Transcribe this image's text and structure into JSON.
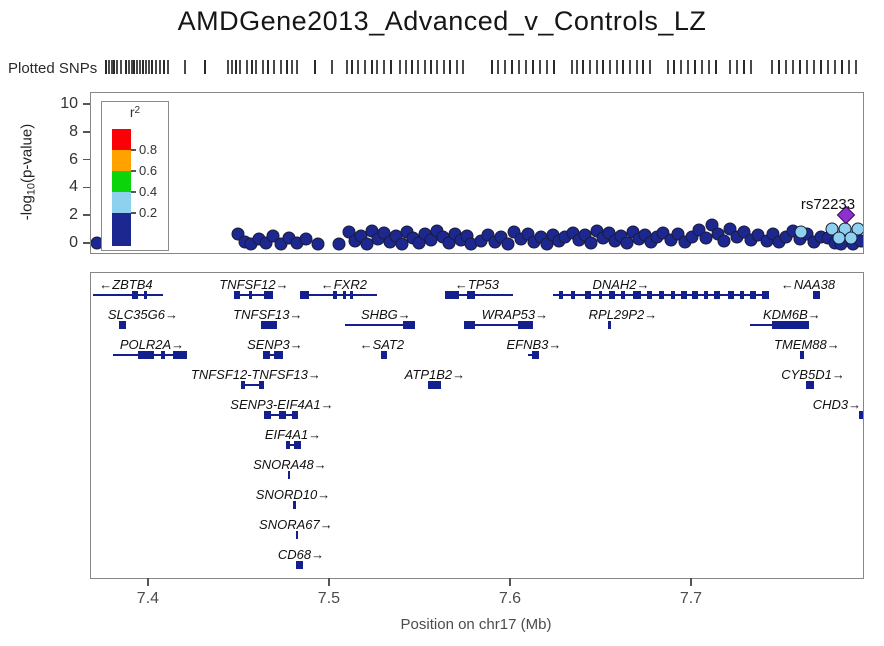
{
  "title": "AMDGene2013_Advanced_v_Controls_LZ",
  "rug_label": "Plotted SNPs",
  "y_axis_label": {
    "prefix": "-log",
    "sub": "10",
    "suffix": "(p-value)"
  },
  "chart_data": {
    "type": "scatter",
    "title": "AMDGene2013_Advanced_v_Controls_LZ",
    "xlabel": "Position on chr17 (Mb)",
    "ylabel": "-log10(p-value)",
    "xlim": [
      7.368,
      7.7945
    ],
    "xticks": [
      7.4,
      7.5,
      7.6,
      7.7
    ],
    "ylim": [
      0,
      10
    ],
    "yticks": [
      0,
      2,
      4,
      6,
      8,
      10
    ],
    "grid": false,
    "legend": {
      "title_base": "r",
      "title_sup": "2",
      "position": "top-left",
      "ticks": [
        "0.8",
        "0.6",
        "0.4",
        "0.2"
      ],
      "colors": [
        "#fb0006",
        "#ffa200",
        "#0bd40b",
        "#8ed1ee",
        "#1c278f"
      ]
    },
    "lead_snp": {
      "name": "rs72233",
      "x": 7.7851,
      "y": 2.1,
      "shape": "diamond",
      "color": "#8d30cc"
    },
    "series": [
      {
        "name": "r2 <= 0.2",
        "color": "#1c278f",
        "shape": "circle",
        "points": [
          [
            7.3712,
            0.05
          ],
          [
            7.4492,
            0.72
          ],
          [
            7.453,
            0.14
          ],
          [
            7.4564,
            0.02
          ],
          [
            7.4608,
            0.36
          ],
          [
            7.4646,
            0.07
          ],
          [
            7.4685,
            0.58
          ],
          [
            7.4729,
            0.02
          ],
          [
            7.4773,
            0.43
          ],
          [
            7.4818,
            0.07
          ],
          [
            7.4867,
            0.36
          ],
          [
            7.4934,
            0.02
          ],
          [
            7.505,
            0.02
          ],
          [
            7.5105,
            0.86
          ],
          [
            7.5138,
            0.22
          ],
          [
            7.5171,
            0.58
          ],
          [
            7.5204,
            0.02
          ],
          [
            7.5232,
            0.94
          ],
          [
            7.5265,
            0.36
          ],
          [
            7.5298,
            0.79
          ],
          [
            7.5331,
            0.14
          ],
          [
            7.5365,
            0.58
          ],
          [
            7.5398,
            0.02
          ],
          [
            7.5425,
            0.86
          ],
          [
            7.5459,
            0.43
          ],
          [
            7.5492,
            0.07
          ],
          [
            7.5525,
            0.72
          ],
          [
            7.5558,
            0.29
          ],
          [
            7.5591,
            0.94
          ],
          [
            7.5624,
            0.5
          ],
          [
            7.5657,
            0.07
          ],
          [
            7.5691,
            0.72
          ],
          [
            7.5724,
            0.29
          ],
          [
            7.5757,
            0.58
          ],
          [
            7.5779,
            0.02
          ],
          [
            7.5834,
            0.22
          ],
          [
            7.5873,
            0.65
          ],
          [
            7.5912,
            0.14
          ],
          [
            7.5945,
            0.5
          ],
          [
            7.5983,
            0.02
          ],
          [
            7.6017,
            0.86
          ],
          [
            7.6055,
            0.36
          ],
          [
            7.6094,
            0.72
          ],
          [
            7.6127,
            0.14
          ],
          [
            7.6166,
            0.5
          ],
          [
            7.6199,
            0.02
          ],
          [
            7.6232,
            0.65
          ],
          [
            7.6265,
            0.22
          ],
          [
            7.6298,
            0.5
          ],
          [
            7.6343,
            0.79
          ],
          [
            7.6376,
            0.29
          ],
          [
            7.6409,
            0.65
          ],
          [
            7.6442,
            0.07
          ],
          [
            7.6475,
            0.94
          ],
          [
            7.6508,
            0.43
          ],
          [
            7.6541,
            0.79
          ],
          [
            7.6575,
            0.22
          ],
          [
            7.6608,
            0.58
          ],
          [
            7.6641,
            0.07
          ],
          [
            7.6674,
            0.86
          ],
          [
            7.6707,
            0.36
          ],
          [
            7.674,
            0.65
          ],
          [
            7.6773,
            0.14
          ],
          [
            7.6807,
            0.5
          ],
          [
            7.684,
            0.79
          ],
          [
            7.6884,
            0.29
          ],
          [
            7.6923,
            0.72
          ],
          [
            7.6961,
            0.14
          ],
          [
            7.7,
            0.5
          ],
          [
            7.7039,
            1.01
          ],
          [
            7.7077,
            0.43
          ],
          [
            7.711,
            1.37
          ],
          [
            7.7144,
            0.72
          ],
          [
            7.7177,
            0.22
          ],
          [
            7.721,
            1.08
          ],
          [
            7.7249,
            0.5
          ],
          [
            7.7287,
            0.86
          ],
          [
            7.7326,
            0.29
          ],
          [
            7.7365,
            0.65
          ],
          [
            7.7414,
            0.22
          ],
          [
            7.7448,
            0.72
          ],
          [
            7.7481,
            0.14
          ],
          [
            7.7519,
            0.5
          ],
          [
            7.7558,
            0.94
          ],
          [
            7.7597,
            0.36
          ],
          [
            7.7635,
            0.72
          ],
          [
            7.7674,
            0.14
          ],
          [
            7.7713,
            0.5
          ],
          [
            7.7751,
            0.43
          ],
          [
            7.779,
            0.05
          ],
          [
            7.7823,
            0.02
          ],
          [
            7.789,
            0.02
          ],
          [
            7.7934,
            0.22
          ]
        ]
      },
      {
        "name": "0.2 < r2 <= 0.4",
        "color": "#8ed1ee",
        "shape": "circle",
        "points": [
          [
            7.7602,
            0.86
          ],
          [
            7.7773,
            1.08
          ],
          [
            7.7845,
            1.08
          ],
          [
            7.7917,
            1.08
          ],
          [
            7.7812,
            0.43
          ],
          [
            7.7878,
            0.43
          ]
        ]
      }
    ],
    "snp_positions_mb": [
      7.3768,
      7.3785,
      7.3801,
      7.3812,
      7.3829,
      7.3851,
      7.3878,
      7.3895,
      7.3912,
      7.3923,
      7.3939,
      7.3956,
      7.3972,
      7.3989,
      7.4006,
      7.4022,
      7.4044,
      7.4066,
      7.4088,
      7.411,
      7.4204,
      7.4315,
      7.4442,
      7.4464,
      7.4486,
      7.4508,
      7.4547,
      7.4575,
      7.4597,
      7.4635,
      7.4663,
      7.4696,
      7.4735,
      7.4768,
      7.4796,
      7.4823,
      7.4923,
      7.5017,
      7.5099,
      7.5127,
      7.516,
      7.5199,
      7.5238,
      7.5265,
      7.5304,
      7.5343,
      7.5392,
      7.5425,
      7.5459,
      7.5492,
      7.553,
      7.5564,
      7.5597,
      7.5635,
      7.5669,
      7.5707,
      7.574,
      7.5901,
      7.5934,
      7.5972,
      7.6011,
      7.605,
      7.6088,
      7.6127,
      7.6166,
      7.6204,
      7.6243,
      7.6343,
      7.637,
      7.6403,
      7.6442,
      7.6481,
      7.6514,
      7.6552,
      7.6591,
      7.6624,
      7.6663,
      7.6702,
      7.6735,
      7.6773,
      7.6873,
      7.6906,
      7.6945,
      7.6983,
      7.7022,
      7.7061,
      7.7099,
      7.7138,
      7.7215,
      7.7254,
      7.7293,
      7.7331,
      7.7448,
      7.7486,
      7.7525,
      7.7564,
      7.7602,
      7.7641,
      7.768,
      7.7718,
      7.7757,
      7.7796,
      7.7834,
      7.7873,
      7.7912
    ],
    "genes": [
      {
        "name": "ZBTB4",
        "strand": "-",
        "row": 1,
        "label_x": 7.3873,
        "start": 7.369,
        "end": 7.408,
        "exons": [
          [
            7.3906,
            7.3939
          ],
          [
            7.3972,
            7.3988
          ]
        ]
      },
      {
        "name": "TNFSF12",
        "strand": "+",
        "row": 1,
        "label_x": 7.458,
        "start": 7.447,
        "end": 7.4685,
        "exons": [
          [
            7.447,
            7.4503
          ],
          [
            7.4553,
            7.457
          ],
          [
            7.4636,
            7.4685
          ]
        ]
      },
      {
        "name": "FXR2",
        "strand": "-",
        "row": 1,
        "label_x": 7.5077,
        "start": 7.4834,
        "end": 7.526,
        "exons": [
          [
            7.4834,
            7.4884
          ],
          [
            7.5017,
            7.5039
          ],
          [
            7.5072,
            7.5089
          ],
          [
            7.5111,
            7.5128
          ]
        ]
      },
      {
        "name": "TP53",
        "strand": "-",
        "row": 1,
        "label_x": 7.5812,
        "start": 7.5635,
        "end": 7.601,
        "exons": [
          [
            7.5635,
            7.5713
          ],
          [
            7.5757,
            7.5801
          ]
        ]
      },
      {
        "name": "DNAH2",
        "strand": "+",
        "row": 1,
        "label_x": 7.6608,
        "start": 7.6232,
        "end": 7.7425,
        "exons": [
          [
            7.6265,
            7.6287
          ],
          [
            7.6331,
            7.6353
          ],
          [
            7.6408,
            7.6441
          ],
          [
            7.6485,
            7.6502
          ],
          [
            7.654,
            7.6573
          ],
          [
            7.6606,
            7.6628
          ],
          [
            7.6672,
            7.6716
          ],
          [
            7.6749,
            7.6782
          ],
          [
            7.6816,
            7.6848
          ],
          [
            7.6882,
            7.6904
          ],
          [
            7.6937,
            7.697
          ],
          [
            7.7003,
            7.7036
          ],
          [
            7.7069,
            7.7091
          ],
          [
            7.7124,
            7.7157
          ],
          [
            7.7201,
            7.7234
          ],
          [
            7.7267,
            7.7289
          ],
          [
            7.7322,
            7.7355
          ],
          [
            7.7389,
            7.7425
          ]
        ]
      },
      {
        "name": "NAA38",
        "strand": "-",
        "row": 1,
        "label_x": 7.7641,
        "start": 7.7668,
        "end": 7.7707,
        "exons": [
          [
            7.7668,
            7.7707
          ]
        ]
      },
      {
        "name": "SLC35G6",
        "strand": "+",
        "row": 2,
        "label_x": 7.3967,
        "start": 7.3834,
        "end": 7.3873,
        "exons": [
          [
            7.3834,
            7.3873
          ]
        ]
      },
      {
        "name": "TNFSF13",
        "strand": "+",
        "row": 2,
        "label_x": 7.4657,
        "start": 7.4619,
        "end": 7.4707,
        "exons": [
          [
            7.4619,
            7.4707
          ]
        ]
      },
      {
        "name": "SHBG",
        "strand": "+",
        "row": 2,
        "label_x": 7.5309,
        "start": 7.5083,
        "end": 7.547,
        "exons": [
          [
            7.5403,
            7.547
          ]
        ]
      },
      {
        "name": "WRAP53",
        "strand": "+",
        "row": 2,
        "label_x": 7.6022,
        "start": 7.574,
        "end": 7.6122,
        "exons": [
          [
            7.574,
            7.5801
          ],
          [
            7.6039,
            7.6122
          ]
        ]
      },
      {
        "name": "RPL29P2",
        "strand": "+",
        "row": 2,
        "label_x": 7.6619,
        "start": 7.6536,
        "end": 7.6553,
        "exons": [
          [
            7.6536,
            7.6553
          ]
        ]
      },
      {
        "name": "KDM6B",
        "strand": "+",
        "row": 2,
        "label_x": 7.7552,
        "start": 7.732,
        "end": 7.7646,
        "exons": [
          [
            7.7441,
            7.7646
          ]
        ]
      },
      {
        "name": "POLR2A",
        "strand": "+",
        "row": 3,
        "label_x": 7.4017,
        "start": 7.3801,
        "end": 7.421,
        "exons": [
          [
            7.3939,
            7.4028
          ],
          [
            7.4067,
            7.4089
          ],
          [
            7.4133,
            7.421
          ]
        ]
      },
      {
        "name": "SENP3",
        "strand": "+",
        "row": 3,
        "label_x": 7.4696,
        "start": 7.463,
        "end": 7.474,
        "exons": [
          [
            7.463,
            7.4668
          ],
          [
            7.4691,
            7.474
          ]
        ]
      },
      {
        "name": "SAT2",
        "strand": "-",
        "row": 3,
        "label_x": 7.5287,
        "start": 7.5282,
        "end": 7.5315,
        "exons": [
          [
            7.5282,
            7.5315
          ]
        ]
      },
      {
        "name": "EFNB3",
        "strand": "+",
        "row": 3,
        "label_x": 7.6127,
        "start": 7.6094,
        "end": 7.6155,
        "exons": [
          [
            7.6116,
            7.6155
          ]
        ]
      },
      {
        "name": "TMEM88",
        "strand": "+",
        "row": 3,
        "label_x": 7.7635,
        "start": 7.7597,
        "end": 7.7619,
        "exons": [
          [
            7.7597,
            7.7619
          ]
        ]
      },
      {
        "name": "TNFSF12-TNFSF13",
        "strand": "+",
        "row": 4,
        "label_x": 7.4591,
        "start": 7.4508,
        "end": 7.4635,
        "exons": [
          [
            7.4508,
            7.453
          ],
          [
            7.4608,
            7.4635
          ]
        ]
      },
      {
        "name": "ATP1B2",
        "strand": "+",
        "row": 4,
        "label_x": 7.558,
        "start": 7.5541,
        "end": 7.5613,
        "exons": [
          [
            7.5541,
            7.5613
          ]
        ]
      },
      {
        "name": "CYB5D1",
        "strand": "+",
        "row": 4,
        "label_x": 7.7669,
        "start": 7.763,
        "end": 7.7674,
        "exons": [
          [
            7.763,
            7.7674
          ]
        ]
      },
      {
        "name": "SENP3-EIF4A1",
        "strand": "+",
        "row": 5,
        "label_x": 7.4735,
        "start": 7.4635,
        "end": 7.4823,
        "exons": [
          [
            7.4635,
            7.4674
          ],
          [
            7.4718,
            7.4757
          ],
          [
            7.479,
            7.4823
          ]
        ]
      },
      {
        "name": "CHD3",
        "strand": "+",
        "row": 5,
        "label_x": 7.7801,
        "start": 7.7923,
        "end": 7.7945,
        "exons": [
          [
            7.7923,
            7.7945
          ]
        ]
      },
      {
        "name": "EIF4A1",
        "strand": "+",
        "row": 6,
        "label_x": 7.4796,
        "start": 7.4757,
        "end": 7.484,
        "exons": [
          [
            7.4757,
            7.4779
          ],
          [
            7.4801,
            7.484
          ]
        ]
      },
      {
        "name": "SNORA48",
        "strand": "+",
        "row": 7,
        "label_x": 7.4779,
        "start": 7.4768,
        "end": 7.4774,
        "exons": [
          [
            7.4768,
            7.4774
          ]
        ]
      },
      {
        "name": "SNORD10",
        "strand": "+",
        "row": 8,
        "label_x": 7.4796,
        "start": 7.4796,
        "end": 7.4801,
        "exons": [
          [
            7.4796,
            7.4801
          ]
        ]
      },
      {
        "name": "SNORA67",
        "strand": "+",
        "row": 9,
        "label_x": 7.4812,
        "start": 7.4812,
        "end": 7.4818,
        "exons": [
          [
            7.4812,
            7.4818
          ]
        ]
      },
      {
        "name": "CD68",
        "strand": "+",
        "row": 10,
        "label_x": 7.484,
        "start": 7.4812,
        "end": 7.4851,
        "exons": [
          [
            7.4812,
            7.4851
          ]
        ]
      }
    ]
  }
}
